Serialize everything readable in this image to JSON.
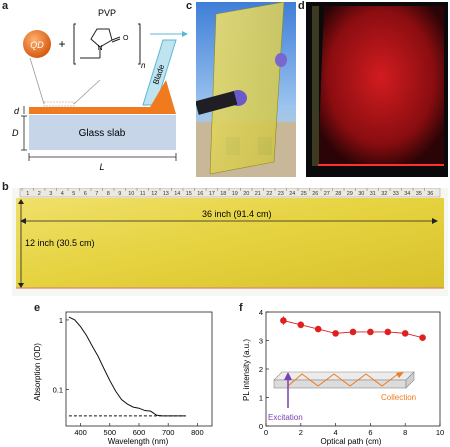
{
  "panels": {
    "a": {
      "label": "a",
      "qd": "QD",
      "plus": "+",
      "pvp": "PVP",
      "n": "n",
      "blade": "Blade",
      "d": "d",
      "D": "D",
      "slab": "Glass slab",
      "L": "L"
    },
    "c": {
      "label": "c"
    },
    "d": {
      "label": "d"
    },
    "b": {
      "label": "b",
      "width_text": "36 inch (91.4 cm)",
      "height_text": "12 inch (30.5 cm)",
      "ruler_numbers": [
        "1",
        "2",
        "3",
        "4",
        "5",
        "6",
        "7",
        "8",
        "9",
        "10",
        "11",
        "12",
        "13",
        "14",
        "15",
        "16",
        "17",
        "18",
        "19",
        "20",
        "21",
        "22",
        "23",
        "24",
        "25",
        "26",
        "27",
        "28",
        "29",
        "30",
        "31",
        "32",
        "33",
        "34",
        "35",
        "36"
      ]
    },
    "e": {
      "label": "e"
    },
    "f": {
      "label": "f",
      "excitation": "Excitation",
      "collection": "Collection"
    }
  },
  "colors": {
    "orange": "#f07b1e",
    "glass": "#c6d6e8",
    "yellow": "#e8d64a",
    "red_glow": "#c0141a",
    "marker_red": "#e02020",
    "excitation": "#7b3fb0",
    "collection": "#f07b1e"
  },
  "chart_data": [
    {
      "panel": "e",
      "type": "line",
      "title": "",
      "xlabel": "Wavelength (nm)",
      "ylabel": "Absorption (OD)",
      "xlim": [
        350,
        850
      ],
      "ylim": [
        0.03,
        1.3
      ],
      "yscale": "log",
      "xticks": [
        "400",
        "500",
        "600",
        "700",
        "800"
      ],
      "yticks": [
        "1",
        "0.1"
      ],
      "series": [
        {
          "style": "solid",
          "x": [
            360,
            380,
            400,
            420,
            440,
            460,
            480,
            500,
            520,
            540,
            560,
            580,
            600,
            620,
            640,
            660,
            680,
            700,
            720,
            740,
            760
          ],
          "y": [
            1.1,
            1.0,
            0.8,
            0.6,
            0.42,
            0.3,
            0.2,
            0.135,
            0.095,
            0.072,
            0.062,
            0.056,
            0.054,
            0.05,
            0.049,
            0.043,
            0.042,
            0.042,
            0.042,
            0.042,
            0.042
          ]
        },
        {
          "style": "dashed",
          "x": [
            360,
            760
          ],
          "y": [
            0.042,
            0.042
          ]
        }
      ]
    },
    {
      "panel": "f",
      "type": "scatter",
      "title": "",
      "xlabel": "Optical path (cm)",
      "ylabel": "PL intensity (a.u.)",
      "xlim": [
        0,
        10
      ],
      "ylim": [
        0,
        4
      ],
      "xticks": [
        "0",
        "2",
        "4",
        "6",
        "8",
        "10"
      ],
      "yticks": [
        "0",
        "1",
        "2",
        "3",
        "4"
      ],
      "series": [
        {
          "x": [
            1,
            2,
            3,
            4,
            5,
            6,
            7,
            8,
            9
          ],
          "y": [
            3.7,
            3.55,
            3.4,
            3.25,
            3.3,
            3.3,
            3.3,
            3.25,
            3.1
          ],
          "err": [
            0.15,
            0.12,
            0.1,
            0.1,
            0.1,
            0.1,
            0.08,
            0.1,
            0.1
          ]
        }
      ]
    }
  ]
}
